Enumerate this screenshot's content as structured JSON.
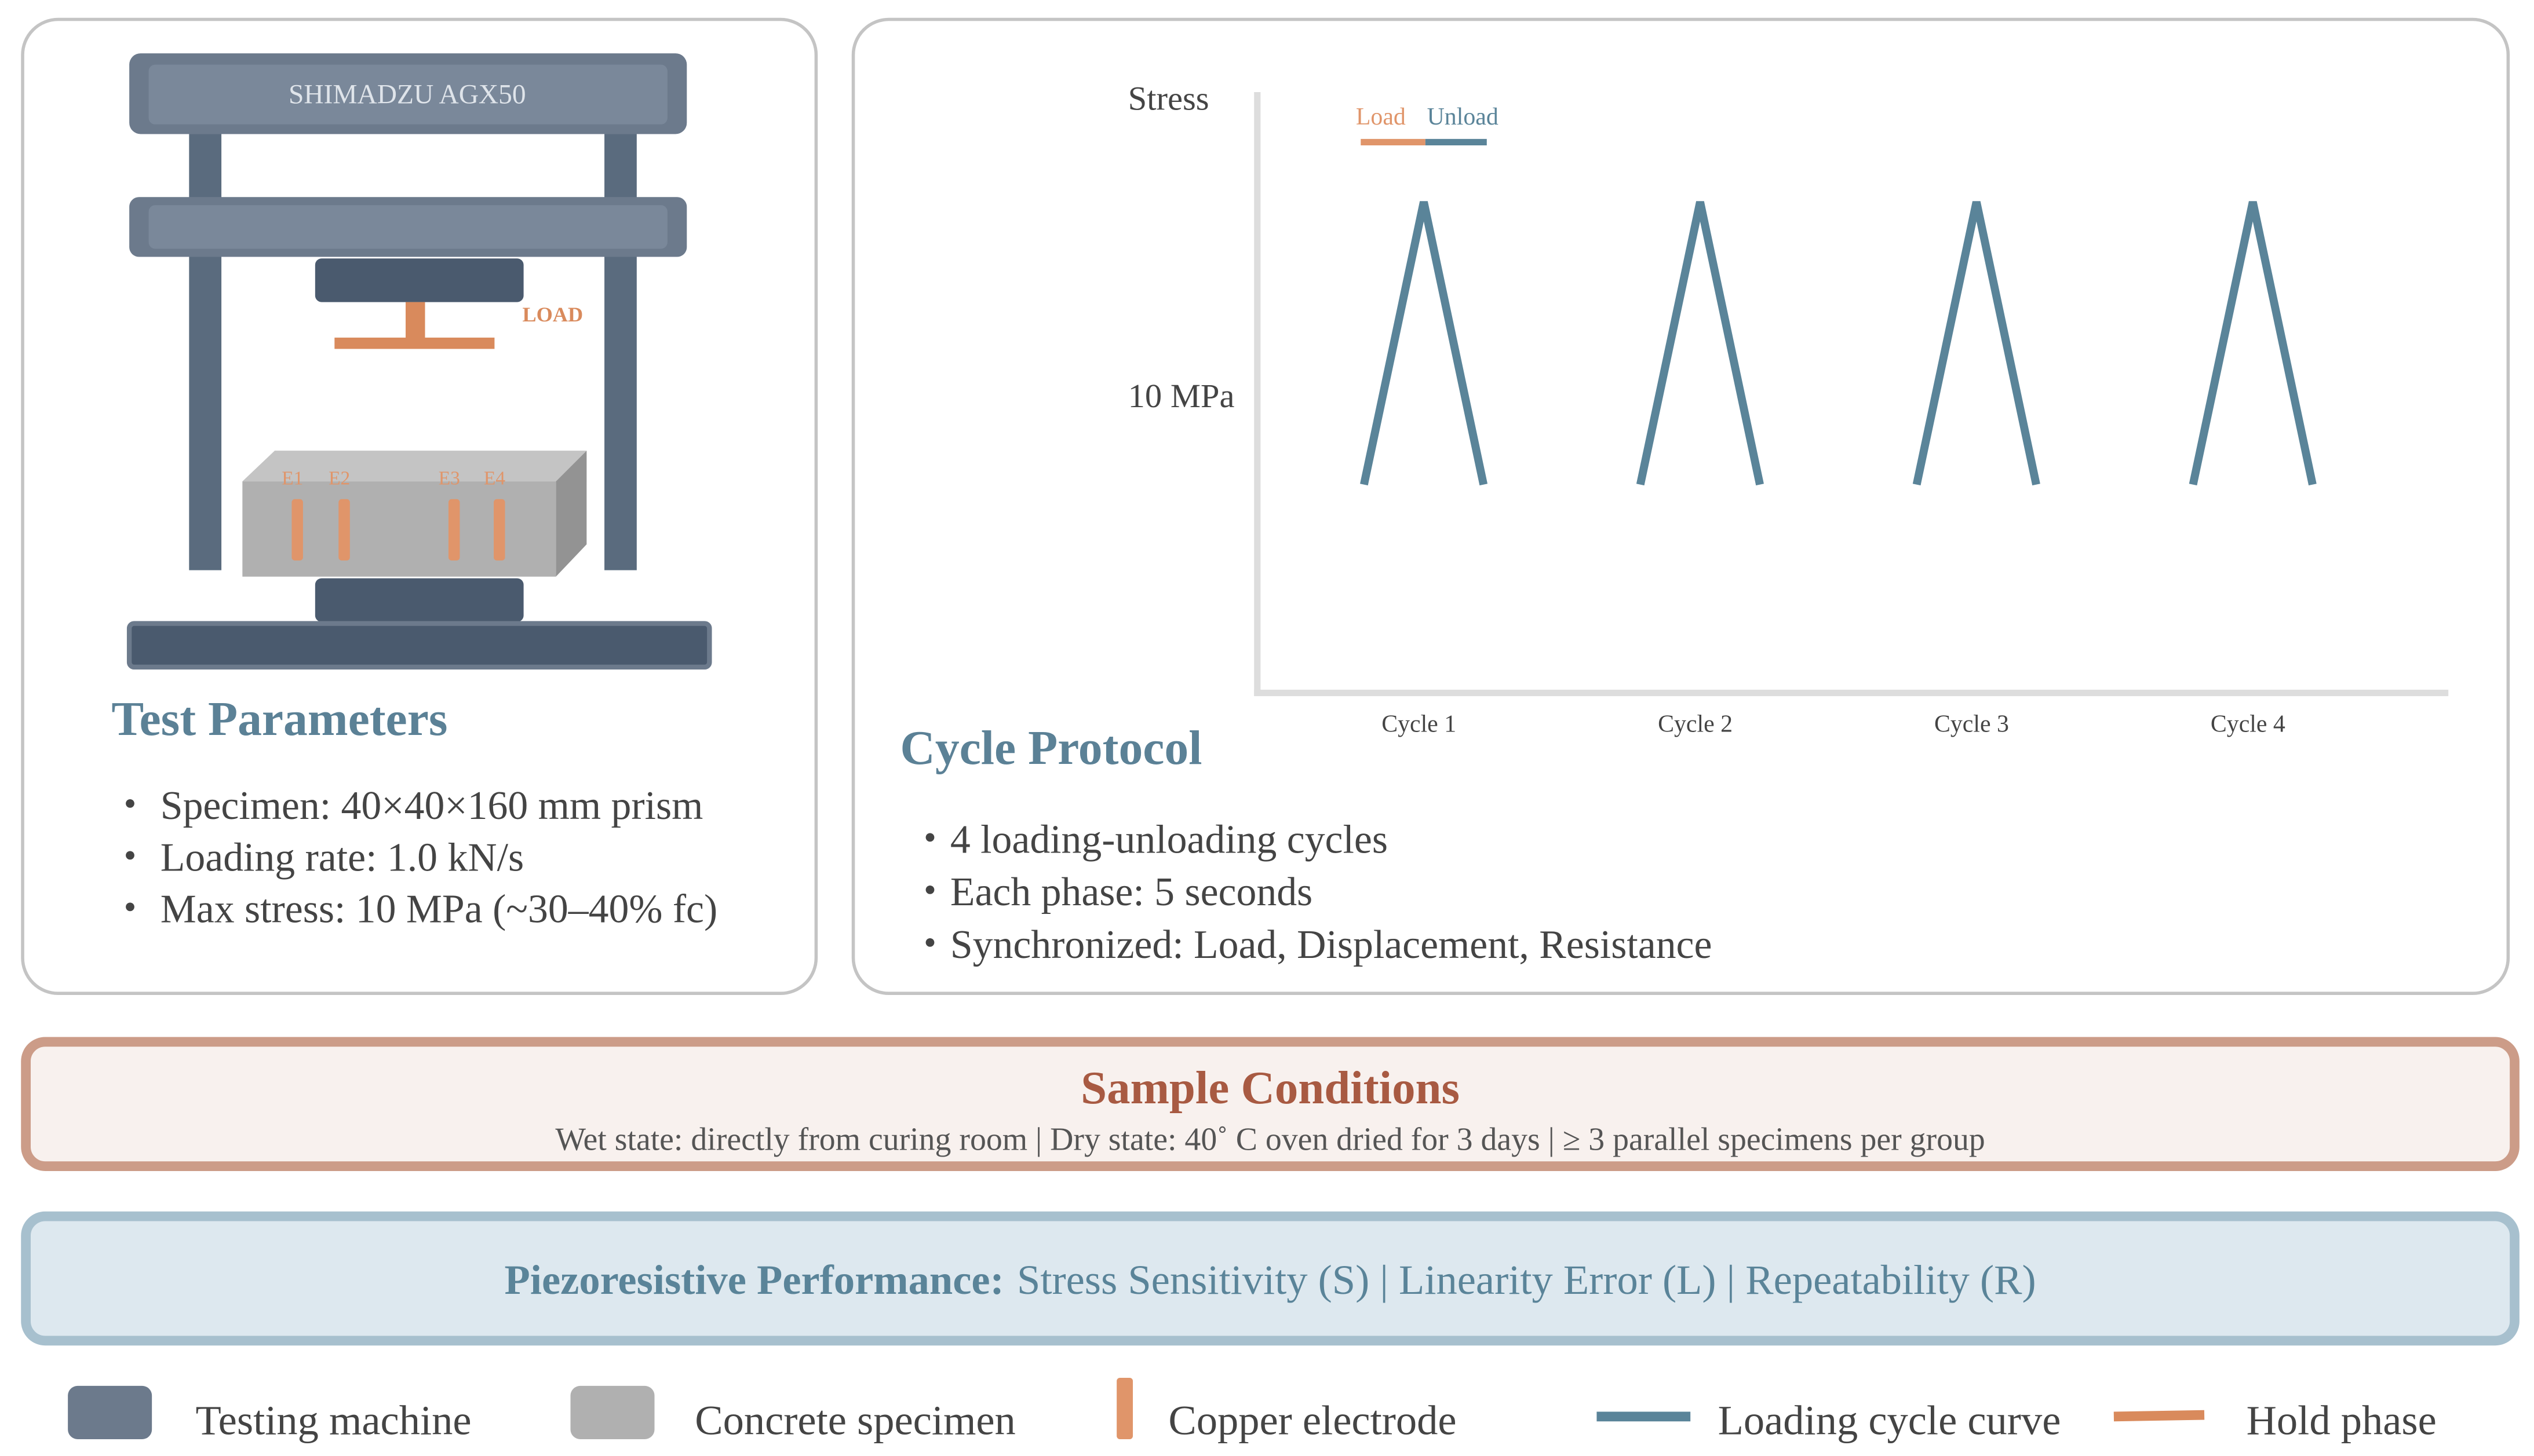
{
  "machine": {
    "label": "SHIMADZU AGX50",
    "load_label": "LOAD",
    "electrodes": [
      "E1",
      "E2",
      "E3",
      "E4"
    ]
  },
  "test_parameters": {
    "title": "Test Parameters",
    "items": [
      "・ Specimen: 40×40×160 mm prism",
      "・ Loading rate: 1.0 kN/s",
      "・ Max stress: 10 MPa (~30–40% fc)"
    ]
  },
  "cycle_chart": {
    "y_label": "Stress",
    "y_tick": "10 MPa",
    "legend": [
      "Load",
      "Unload"
    ],
    "cycles": [
      "Cycle  1",
      "Cycle  2",
      "Cycle  3",
      "Cycle  4"
    ]
  },
  "cycle_protocol": {
    "title": "Cycle Protocol",
    "items": [
      "・4 loading-unloading cycles",
      "・Each phase: 5 seconds",
      "・Synchronized: Load, Displacement, Resistance"
    ]
  },
  "sample_conditions": {
    "title": "Sample Conditions",
    "text": "Wet state: directly from curing room | Dry state: 40˚ C oven dried for 3 days | ≥ 3 parallel specimens per group"
  },
  "performance": {
    "label": "Piezoresistive Performance:",
    "text": "Stress Sensitivity (S) | Linearity Error (L) | Repeatability (R)"
  },
  "legend": [
    "Testing machine",
    "Concrete specimen",
    "Copper electrode",
    "Loading cycle curve",
    "Hold phase"
  ]
}
